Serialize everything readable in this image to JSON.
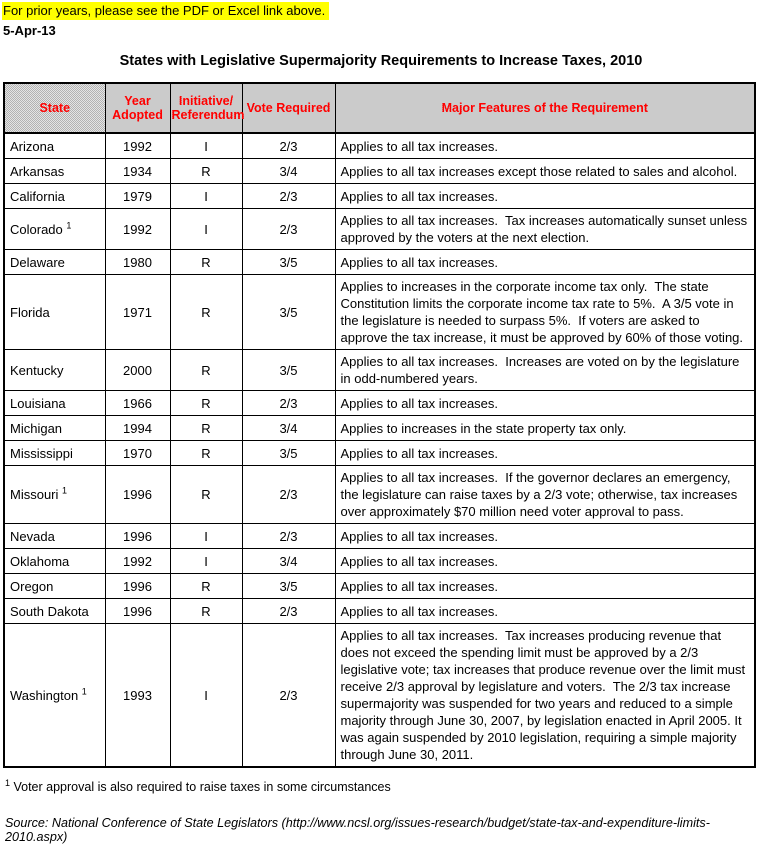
{
  "page": {
    "note": "For prior years, please see the PDF or Excel link above.",
    "date": "5-Apr-13",
    "title": "States with Legislative Supermajority Requirements to Increase Taxes, 2010",
    "footnote_marker": "1",
    "footnote_text": " Voter approval is also required to raise taxes in some circumstances",
    "source": "Source: National Conference of State Legislators (http://www.ncsl.org/issues-research/budget/state-tax-and-expenditure-limits-2010.aspx)"
  },
  "colors": {
    "highlight": "#FFFF00",
    "header_text": "#FF0000",
    "header_bg": "#C8C8C8",
    "border": "#000000"
  },
  "table": {
    "columns": {
      "state": "State",
      "year": "Year Adopted",
      "initiative_referendum": "Initiative/ Referendum",
      "vote": "Vote Required",
      "features": "Major Features of the Requirement"
    },
    "rows": [
      {
        "state": "Arizona",
        "sup": "",
        "year": "1992",
        "ir": "I",
        "vote": "2/3",
        "features": "Applies to all tax increases."
      },
      {
        "state": "Arkansas",
        "sup": "",
        "year": "1934",
        "ir": "R",
        "vote": "3/4",
        "features": "Applies to all tax increases except those related to sales and alcohol."
      },
      {
        "state": "California",
        "sup": "",
        "year": "1979",
        "ir": "I",
        "vote": "2/3",
        "features": "Applies to all tax increases."
      },
      {
        "state": "Colorado",
        "sup": "1",
        "year": "1992",
        "ir": "I",
        "vote": "2/3",
        "features": "Applies to all tax increases.  Tax increases automatically sunset unless approved by the voters at the next election."
      },
      {
        "state": "Delaware",
        "sup": "",
        "year": "1980",
        "ir": "R",
        "vote": "3/5",
        "features": "Applies to all tax increases."
      },
      {
        "state": "Florida",
        "sup": "",
        "year": "1971",
        "ir": "R",
        "vote": "3/5",
        "features": "Applies to increases in the corporate income tax only.  The state Constitution limits the corporate income tax rate to 5%.  A 3/5 vote in the legislature is needed to surpass 5%.  If voters are asked to approve the tax increase, it must be approved by 60% of those voting."
      },
      {
        "state": "Kentucky",
        "sup": "",
        "year": "2000",
        "ir": "R",
        "vote": "3/5",
        "features": "Applies to all tax increases.  Increases are voted on by the legislature in odd-numbered years."
      },
      {
        "state": "Louisiana",
        "sup": "",
        "year": "1966",
        "ir": "R",
        "vote": "2/3",
        "features": "Applies to all tax increases."
      },
      {
        "state": "Michigan",
        "sup": "",
        "year": "1994",
        "ir": "R",
        "vote": "3/4",
        "features": "Applies to increases in the state property tax only."
      },
      {
        "state": "Mississippi",
        "sup": "",
        "year": "1970",
        "ir": "R",
        "vote": "3/5",
        "features": "Applies to all tax increases."
      },
      {
        "state": "Missouri",
        "sup": "1",
        "year": "1996",
        "ir": "R",
        "vote": "2/3",
        "features": "Applies to all tax increases.  If the governor declares an emergency, the legislature can raise taxes by a 2/3 vote; otherwise, tax increases over approximately $70 million need voter approval to pass."
      },
      {
        "state": "Nevada",
        "sup": "",
        "year": "1996",
        "ir": "I",
        "vote": "2/3",
        "features": "Applies to all tax increases."
      },
      {
        "state": "Oklahoma",
        "sup": "",
        "year": "1992",
        "ir": "I",
        "vote": "3/4",
        "features": "Applies to all tax increases."
      },
      {
        "state": "Oregon",
        "sup": "",
        "year": "1996",
        "ir": "R",
        "vote": "3/5",
        "features": "Applies to all tax increases."
      },
      {
        "state": "South Dakota",
        "sup": "",
        "year": "1996",
        "ir": "R",
        "vote": "2/3",
        "features": "Applies to all tax increases."
      },
      {
        "state": "Washington",
        "sup": "1",
        "year": "1993",
        "ir": "I",
        "vote": "2/3",
        "features": "Applies to all tax increases.  Tax increases producing revenue that does not exceed the spending limit must be approved by a 2/3 legislative vote; tax increases that produce revenue over the limit must receive 2/3 approval by legislature and voters.  The 2/3 tax increase supermajority was suspended for two years and reduced to a simple majority through June 30, 2007, by legislation enacted in April 2005. It was again suspended by 2010 legislation, requiring a simple majority through June 30, 2011."
      }
    ]
  }
}
